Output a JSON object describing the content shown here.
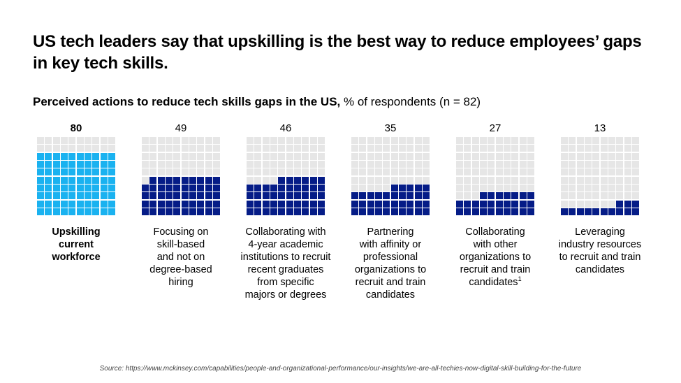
{
  "title": "US tech leaders say that upskilling is the best way to reduce employees’ gaps in key tech skills.",
  "subtitle": {
    "bold": "Perceived actions to reduce tech skills gaps in the US,",
    "regular": "% of respondents (n = 82)"
  },
  "colors": {
    "highlight": "#1ab2f0",
    "filled": "#051c87",
    "empty": "#e6e6e6"
  },
  "chart_data": {
    "type": "waffle",
    "grid": {
      "rows": 10,
      "columns": 10
    },
    "unit": "% of respondents",
    "categories": [
      {
        "value": 80,
        "label": "Upskilling current workforce",
        "label_lines": [
          "Upskilling",
          "current",
          "workforce"
        ],
        "highlight": true
      },
      {
        "value": 49,
        "label": "Focusing on skill-based and not on degree-based hiring",
        "label_lines": [
          "Focusing on",
          "skill-based",
          "and not on",
          "degree-based",
          "hiring"
        ],
        "highlight": false
      },
      {
        "value": 46,
        "label": "Collaborating with 4-year academic institutions to recruit recent graduates from specific majors or degrees",
        "label_lines": [
          "Collaborating with",
          "4-year academic",
          "institutions to recruit",
          "recent graduates",
          "from specific",
          "majors or degrees"
        ],
        "highlight": false
      },
      {
        "value": 35,
        "label": "Partnering with affinity or professional organizations to recruit and train candidates",
        "label_lines": [
          "Partnering",
          "with affinity or",
          "professional",
          "organizations to",
          "recruit and train",
          "candidates"
        ],
        "highlight": false
      },
      {
        "value": 27,
        "label": "Collaborating with other organizations to recruit and train candidates",
        "label_lines": [
          "Collaborating",
          "with other",
          "organizations to",
          "recruit and train",
          "candidates"
        ],
        "footnote": "1",
        "highlight": false
      },
      {
        "value": 13,
        "label": "Leveraging industry resources to recruit and train candidates",
        "label_lines": [
          "Leveraging",
          "industry resources",
          "to recruit and train",
          "candidates"
        ],
        "highlight": false
      }
    ]
  },
  "source": "Source: https://www.mckinsey.com/capabilities/people-and-organizational-performance/our-insights/we-are-all-techies-now-digital-skill-building-for-the-future"
}
